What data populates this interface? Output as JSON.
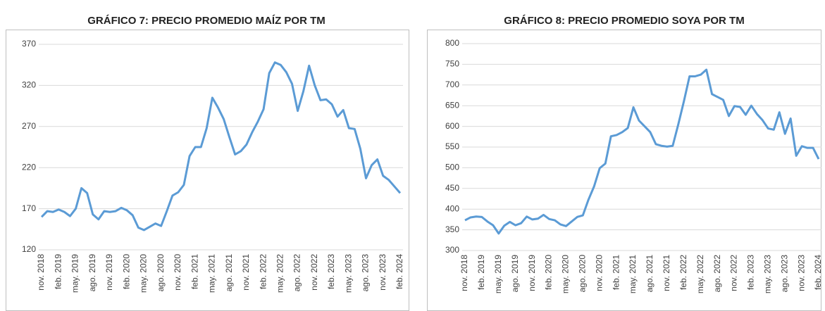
{
  "chart_data": [
    {
      "type": "line",
      "title": "GRÁFICO 7: PRECIO PROMEDIO MAÍZ POR TM",
      "categories": [
        "nov. 2018",
        null,
        null,
        "feb. 2019",
        null,
        null,
        "may. 2019",
        null,
        null,
        "ago. 2019",
        null,
        null,
        "nov. 2019",
        null,
        null,
        "feb. 2020",
        null,
        null,
        "may. 2020",
        null,
        null,
        "ago. 2020",
        null,
        null,
        "nov. 2020",
        null,
        null,
        "feb. 2021",
        null,
        null,
        "may. 2021",
        null,
        null,
        "ago. 2021",
        null,
        null,
        "nov. 2021",
        null,
        null,
        "feb. 2022",
        null,
        null,
        "may. 2022",
        null,
        null,
        "ago. 2022",
        null,
        null,
        "nov. 2022",
        null,
        null,
        "feb. 2023",
        null,
        null,
        "may. 2023",
        null,
        null,
        "ago. 2023",
        null,
        null,
        "nov. 2023",
        null,
        null,
        "feb. 2024"
      ],
      "values": [
        160,
        167,
        166,
        169,
        166,
        161,
        170,
        195,
        189,
        163,
        157,
        167,
        166,
        167,
        171,
        168,
        162,
        147,
        144,
        148,
        152,
        149,
        167,
        186,
        190,
        199,
        234,
        245,
        245,
        268,
        305,
        293,
        279,
        257,
        236,
        240,
        248,
        263,
        276,
        291,
        335,
        348,
        345,
        336,
        322,
        289,
        313,
        344,
        320,
        302,
        303,
        297,
        282,
        290,
        268,
        267,
        243,
        207,
        223,
        230,
        210,
        205,
        197,
        189
      ],
      "color": "#5b9bd5",
      "ylim": [
        120,
        370
      ],
      "yticks": [
        120,
        170,
        220,
        270,
        320,
        370
      ],
      "grid": true
    },
    {
      "type": "line",
      "title": "GRÁFICO 8: PRECIO PROMEDIO SOYA POR TM",
      "categories": [
        "nov. 2018",
        null,
        null,
        "feb. 2019",
        null,
        null,
        "may. 2019",
        null,
        null,
        "ago. 2019",
        null,
        null,
        "nov. 2019",
        null,
        null,
        "feb. 2020",
        null,
        null,
        "may. 2020",
        null,
        null,
        "ago. 2020",
        null,
        null,
        "nov. 2020",
        null,
        null,
        "feb. 2021",
        null,
        null,
        "may. 2021",
        null,
        null,
        "ago. 2021",
        null,
        null,
        "nov. 2021",
        null,
        null,
        "feb. 2022",
        null,
        null,
        "may. 2022",
        null,
        null,
        "ago. 2022",
        null,
        null,
        "nov. 2022",
        null,
        null,
        "feb. 2023",
        null,
        null,
        "may. 2023",
        null,
        null,
        "ago. 2023",
        null,
        null,
        "nov. 2023",
        null,
        null,
        "feb. 2024"
      ],
      "values": [
        373,
        380,
        382,
        381,
        370,
        361,
        341,
        360,
        369,
        361,
        366,
        382,
        375,
        377,
        386,
        376,
        373,
        363,
        359,
        370,
        381,
        385,
        423,
        455,
        499,
        510,
        576,
        579,
        586,
        596,
        646,
        614,
        600,
        586,
        557,
        553,
        551,
        553,
        605,
        661,
        721,
        721,
        725,
        737,
        678,
        671,
        664,
        625,
        649,
        647,
        628,
        650,
        630,
        615,
        595,
        592,
        634,
        582,
        619,
        529,
        552,
        548,
        548,
        521
      ],
      "color": "#5b9bd5",
      "ylim": [
        300,
        800
      ],
      "yticks": [
        300,
        350,
        400,
        450,
        500,
        550,
        600,
        650,
        700,
        750,
        800
      ],
      "grid": true
    }
  ]
}
